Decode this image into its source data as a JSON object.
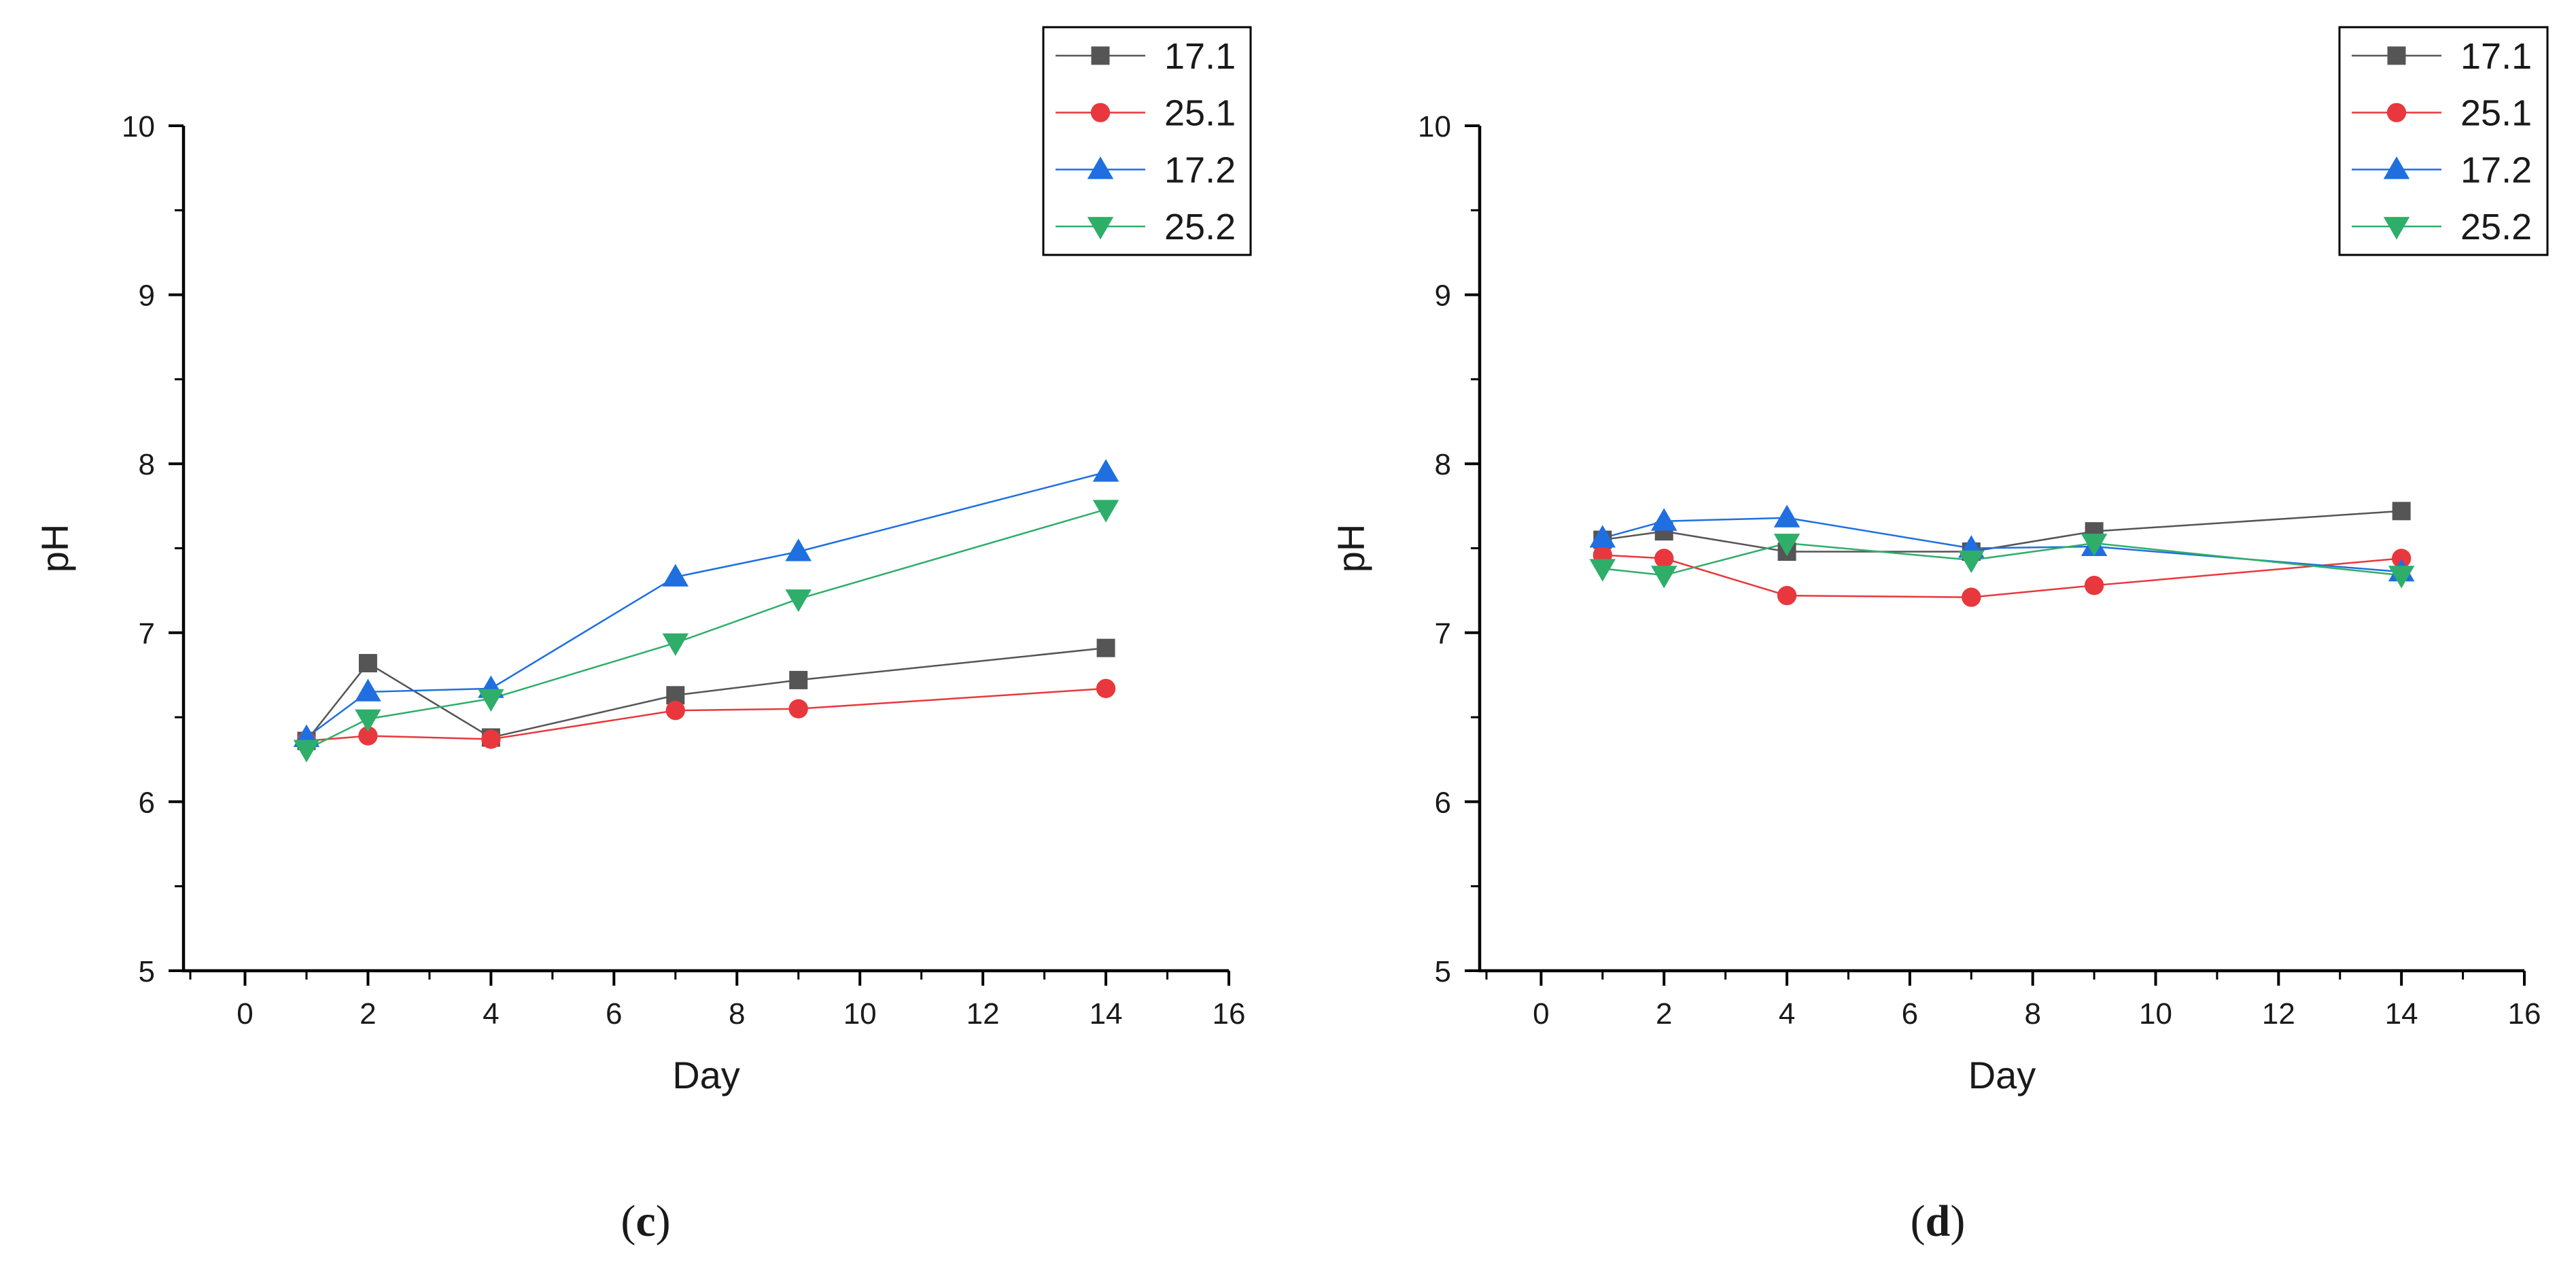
{
  "colors": {
    "s17_1": "#555555",
    "s25_1": "#e8383d",
    "s17_2": "#1f6fe0",
    "s25_2": "#2fae6a",
    "axis": "#000000"
  },
  "chart_data": [
    {
      "type": "line",
      "panel": "c",
      "caption_open": "(",
      "caption_letter": "c",
      "caption_close": ")",
      "title": "",
      "xlabel": "Day",
      "ylabel": "pH",
      "xlim": [
        -1,
        16
      ],
      "ylim": [
        5,
        10
      ],
      "xticks": [
        0,
        2,
        4,
        6,
        8,
        10,
        12,
        14,
        16
      ],
      "yticks": [
        5,
        6,
        7,
        8,
        9,
        10
      ],
      "x": [
        1,
        2,
        4,
        7,
        9,
        14
      ],
      "legend_position": "top-right",
      "series": [
        {
          "name": "17.1",
          "color": "#555555",
          "marker": "square",
          "values": [
            6.36,
            6.82,
            6.38,
            6.63,
            6.72,
            6.91
          ]
        },
        {
          "name": "25.1",
          "color": "#e8383d",
          "marker": "circle",
          "values": [
            6.36,
            6.39,
            6.37,
            6.54,
            6.55,
            6.67
          ]
        },
        {
          "name": "17.2",
          "color": "#1f6fe0",
          "marker": "triangle-up",
          "values": [
            6.38,
            6.65,
            6.67,
            7.33,
            7.48,
            7.95
          ]
        },
        {
          "name": "25.2",
          "color": "#2fae6a",
          "marker": "triangle-down",
          "values": [
            6.31,
            6.49,
            6.61,
            6.94,
            7.2,
            7.73
          ]
        }
      ]
    },
    {
      "type": "line",
      "panel": "d",
      "caption_open": "(",
      "caption_letter": "d",
      "caption_close": ")",
      "title": "",
      "xlabel": "Day",
      "ylabel": "pH",
      "xlim": [
        -1,
        16
      ],
      "ylim": [
        5,
        10
      ],
      "xticks": [
        0,
        2,
        4,
        6,
        8,
        10,
        12,
        14,
        16
      ],
      "yticks": [
        5,
        6,
        7,
        8,
        9,
        10
      ],
      "x": [
        1,
        2,
        4,
        7,
        9,
        14
      ],
      "legend_position": "top-right",
      "series": [
        {
          "name": "17.1",
          "color": "#555555",
          "marker": "square",
          "values": [
            7.55,
            7.6,
            7.48,
            7.48,
            7.6,
            7.72
          ]
        },
        {
          "name": "25.1",
          "color": "#e8383d",
          "marker": "circle",
          "values": [
            7.46,
            7.44,
            7.22,
            7.21,
            7.28,
            7.44
          ]
        },
        {
          "name": "17.2",
          "color": "#1f6fe0",
          "marker": "triangle-up",
          "values": [
            7.56,
            7.66,
            7.68,
            7.5,
            7.51,
            7.36
          ]
        },
        {
          "name": "25.2",
          "color": "#2fae6a",
          "marker": "triangle-down",
          "values": [
            7.38,
            7.34,
            7.53,
            7.43,
            7.53,
            7.34
          ]
        }
      ]
    }
  ]
}
